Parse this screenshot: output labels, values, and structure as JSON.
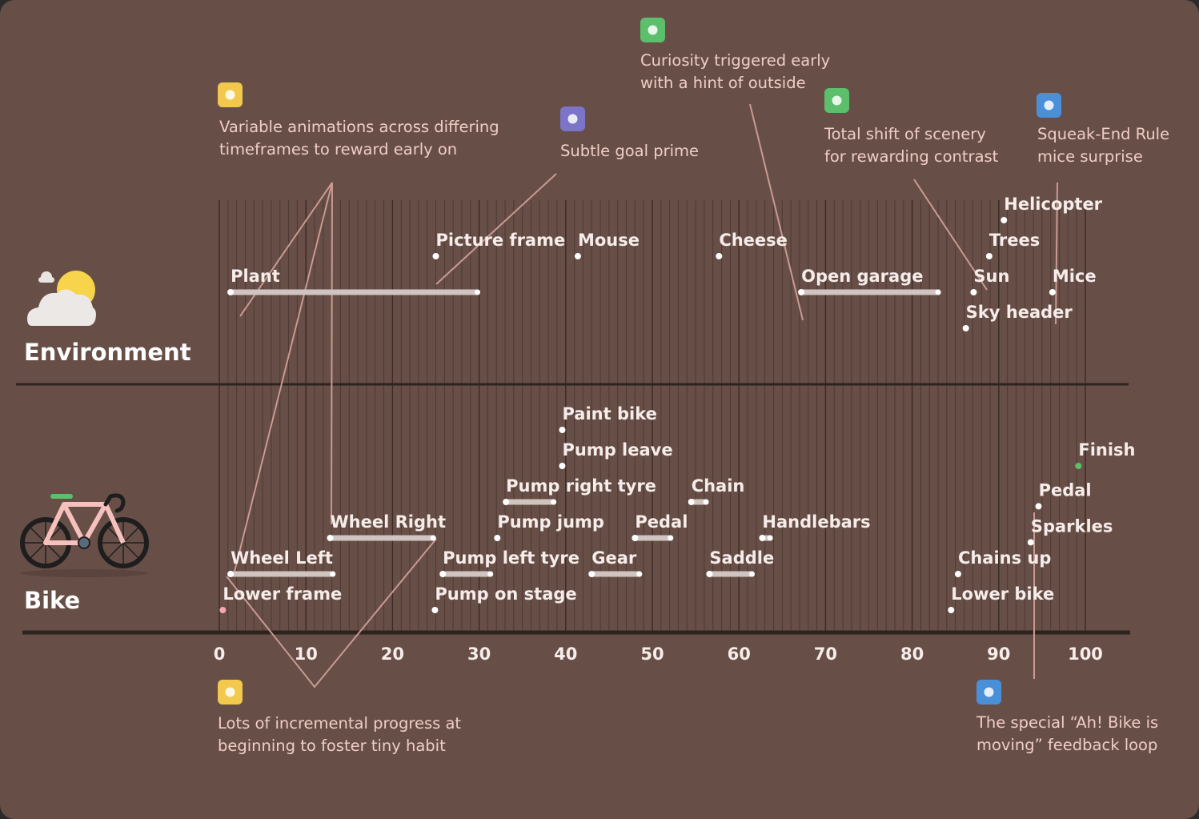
{
  "chart_data": {
    "type": "timeline",
    "xlim": [
      0,
      100
    ],
    "ticks": [
      0,
      10,
      20,
      30,
      40,
      50,
      60,
      70,
      80,
      90,
      100
    ],
    "grid": "vertical",
    "sections": [
      {
        "id": "environment",
        "label": "Environment",
        "icon": "cloud-sun-icon"
      },
      {
        "id": "bike",
        "label": "Bike",
        "icon": "bicycle-icon"
      }
    ],
    "events": [
      {
        "section": "environment",
        "label": "Plant",
        "start": 1.3,
        "end": 29.8,
        "row": 3
      },
      {
        "section": "environment",
        "label": "Picture frame",
        "start": 25,
        "row": 2
      },
      {
        "section": "environment",
        "label": "Mouse",
        "start": 41.4,
        "row": 2
      },
      {
        "section": "environment",
        "label": "Cheese",
        "start": 57.7,
        "row": 2
      },
      {
        "section": "environment",
        "label": "Open garage",
        "start": 67.2,
        "end": 83,
        "row": 3
      },
      {
        "section": "environment",
        "label": "Helicopter",
        "start": 90.6,
        "row": 1
      },
      {
        "section": "environment",
        "label": "Trees",
        "start": 88.9,
        "row": 2
      },
      {
        "section": "environment",
        "label": "Sun",
        "start": 87.1,
        "row": 3
      },
      {
        "section": "environment",
        "label": "Mice",
        "start": 96.2,
        "row": 3
      },
      {
        "section": "environment",
        "label": "Sky header",
        "start": 86.2,
        "row": 4
      },
      {
        "section": "bike",
        "label": "Paint bike",
        "start": 39.6,
        "row": 1
      },
      {
        "section": "bike",
        "label": "Pump leave",
        "start": 39.6,
        "row": 2
      },
      {
        "section": "bike",
        "label": "Pump right tyre",
        "start": 33.1,
        "end": 38.6,
        "row": 3
      },
      {
        "section": "bike",
        "label": "Chain",
        "start": 54.5,
        "end": 56.2,
        "row": 3
      },
      {
        "section": "bike",
        "label": "Wheel Right",
        "start": 12.8,
        "end": 24.7,
        "row": 4
      },
      {
        "section": "bike",
        "label": "Pump jump",
        "start": 32.1,
        "row": 4
      },
      {
        "section": "bike",
        "label": "Pedal",
        "start": 48,
        "end": 52.1,
        "row": 4
      },
      {
        "section": "bike",
        "label": "Handlebars",
        "start": 62.7,
        "end": 63.6,
        "row": 4
      },
      {
        "section": "bike",
        "label": "Finish",
        "start": 99.2,
        "row": 2,
        "highlight": true
      },
      {
        "section": "bike",
        "label": "Pedal",
        "start": 94.6,
        "row": 3.12
      },
      {
        "section": "bike",
        "label": "Sparkles",
        "start": 93.7,
        "row": 4.12
      },
      {
        "section": "bike",
        "label": "Wheel Left",
        "start": 1.3,
        "end": 13.1,
        "row": 5
      },
      {
        "section": "bike",
        "label": "Pump left tyre",
        "start": 25.8,
        "end": 31.3,
        "row": 5
      },
      {
        "section": "bike",
        "label": "Gear",
        "start": 43,
        "end": 48.5,
        "row": 5
      },
      {
        "section": "bike",
        "label": "Saddle",
        "start": 56.6,
        "end": 61.5,
        "row": 5
      },
      {
        "section": "bike",
        "label": "Chains up",
        "start": 85.3,
        "row": 5
      },
      {
        "section": "bike",
        "label": "Lower frame",
        "start": 0.4,
        "row": 6,
        "pink": true
      },
      {
        "section": "bike",
        "label": "Pump on stage",
        "start": 24.9,
        "row": 6
      },
      {
        "section": "bike",
        "label": "Lower bike",
        "start": 84.5,
        "row": 6
      }
    ],
    "annotations": [
      {
        "lines": [
          "Variable animations across differing",
          "timeframes to reward early on"
        ],
        "icon": "hourglass-icon",
        "color": "#f2c94c"
      },
      {
        "lines": [
          "Subtle goal prime"
        ],
        "icon": "sparkle-wand-icon",
        "color": "#7b74c9"
      },
      {
        "lines": [
          "Curiosity triggered early",
          "with a hint of outside"
        ],
        "icon": "peek-icon",
        "color": "#5bbf6b"
      },
      {
        "lines": [
          "Total shift of scenery",
          "for rewarding contrast"
        ],
        "icon": "bottle-icon",
        "color": "#5bbf6b"
      },
      {
        "lines": [
          "Squeak-End Rule",
          "mice surprise"
        ],
        "icon": "mountain-icon",
        "color": "#4a90d9"
      },
      {
        "lines": [
          "Lots of incremental progress at",
          "beginning to foster tiny habit"
        ],
        "icon": "sneaker-icon",
        "color": "#f2c94c"
      },
      {
        "lines": [
          "The special “Ah! Bike is",
          "moving” feedback loop"
        ],
        "icon": "thumbs-up-icon",
        "color": "#4a90d9"
      }
    ]
  }
}
